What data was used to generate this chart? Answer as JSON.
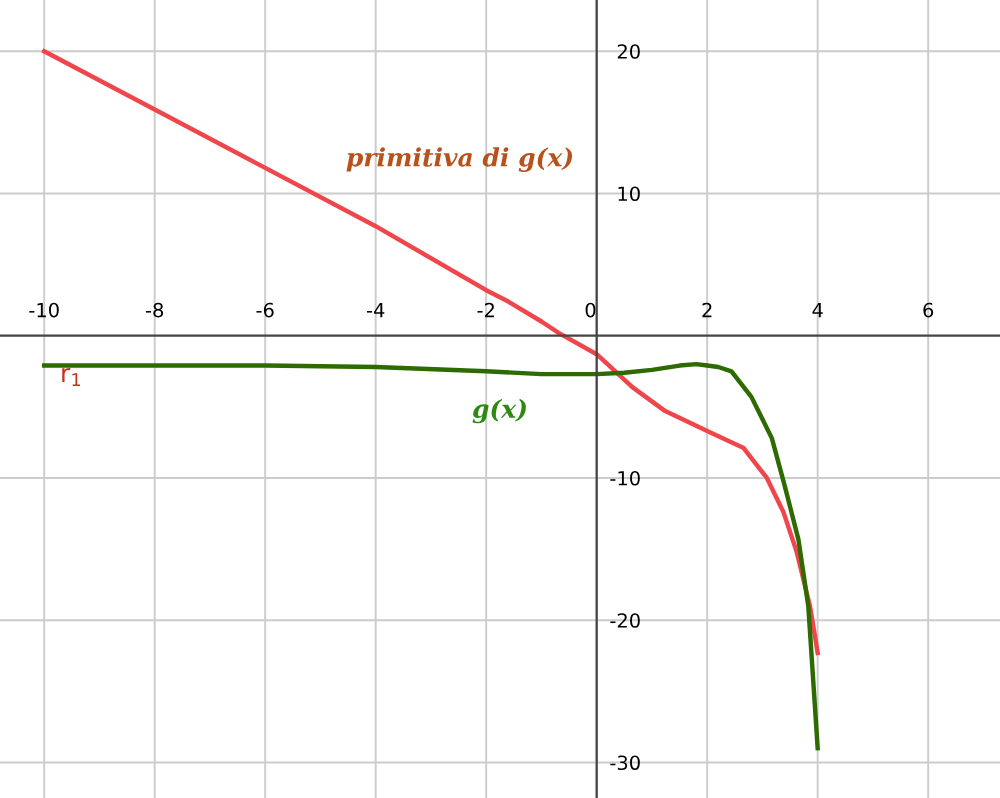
{
  "chart_data": {
    "type": "line",
    "xlim": [
      -10.8,
      7.3
    ],
    "ylim": [
      -32.5,
      23.6
    ],
    "xticks": [
      -10,
      -8,
      -6,
      -4,
      -2,
      0,
      2,
      4,
      6
    ],
    "yticks": [
      -30,
      -20,
      -10,
      10,
      20
    ],
    "grid": true,
    "series": [
      {
        "name": "primitiva di g(x)",
        "color": "#f0464b",
        "x": [
          -10,
          -8,
          -6,
          -4,
          -2,
          -1.6,
          -1,
          -0.69,
          0,
          0.64,
          1.24,
          2,
          2.66,
          3.08,
          3.38,
          3.62,
          3.86,
          4
        ],
        "values": [
          20,
          15.9,
          11.8,
          7.7,
          3.2,
          2.4,
          1.0,
          0.2,
          -1.3,
          -3.6,
          -5.3,
          -6.7,
          -7.9,
          -10,
          -12.4,
          -15.2,
          -19,
          -22.3
        ]
      },
      {
        "name": "g(x)",
        "color": "#2d6a00",
        "x": [
          -10,
          -8,
          -6,
          -4,
          -2,
          -1,
          0,
          0.5,
          1,
          1.5,
          1.8,
          2,
          2.2,
          2.44,
          2.8,
          3.17,
          3.4,
          3.65,
          3.83,
          4
        ],
        "values": [
          -2.1,
          -2.1,
          -2.1,
          -2.2,
          -2.5,
          -2.7,
          -2.7,
          -2.6,
          -2.4,
          -2.1,
          -2.0,
          -2.1,
          -2.2,
          -2.5,
          -4.3,
          -7.2,
          -10.5,
          -14.3,
          -19,
          -29
        ]
      }
    ],
    "annotations": [
      "r$_{1}$"
    ]
  }
}
